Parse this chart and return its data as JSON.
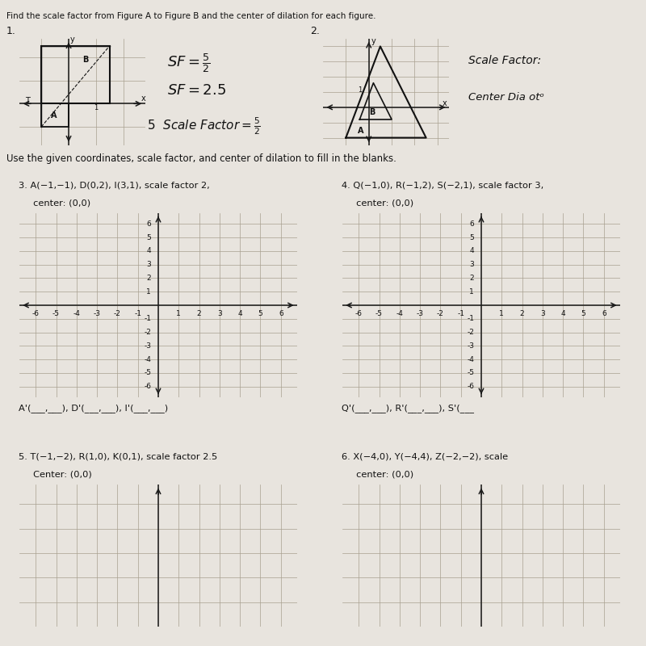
{
  "bg_color": "#e8e4de",
  "top_line": "Find the scale factor from Figure A to Figure B and the center of dilation for each figure.",
  "page_title": "Use the given coordinates, scale factor, and center of dilation to fill in the blanks.",
  "problems": [
    {
      "number": "3.",
      "text_line1": "A(−1,−1), D(0,2), I(3,1), scale factor 2,",
      "text_line2": "     center: (0,0)",
      "answer_line": "A'(___,___), D'(___,___), I'(___,___)"
    },
    {
      "number": "4.",
      "text_line1": "Q(−1,0), R(−1,2), S(−2,1), scale factor 3,",
      "text_line2": "     center: (0,0)",
      "answer_line": "Q'(___,___), R'(___,___), S'(___"
    },
    {
      "number": "5.",
      "text_line1": "T(−1,−2), R(1,0), K(0,1), scale factor 2.5",
      "text_line2": "     Center: (0,0)",
      "answer_line": ""
    },
    {
      "number": "6.",
      "text_line1": "X(−4,0), Y(−4,4), Z(−2,−2), scale",
      "text_line2": "     center: (0,0)",
      "answer_line": ""
    }
  ],
  "grid_color": "#a8a090",
  "axis_color": "#1a1a1a",
  "text_color": "#111111",
  "hw_color": "#111111",
  "xticks": [
    -6,
    -5,
    -4,
    -3,
    -2,
    -1,
    0,
    1,
    2,
    3,
    4,
    5,
    6
  ],
  "yticks": [
    -6,
    -5,
    -4,
    -3,
    -2,
    -1,
    0,
    1,
    2,
    3,
    4,
    5,
    6
  ],
  "xlim": [
    -6.8,
    6.8
  ],
  "ylim": [
    -6.8,
    6.8
  ]
}
